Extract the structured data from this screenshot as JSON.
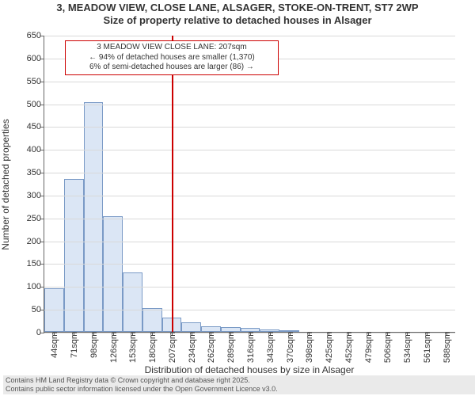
{
  "title_line1": "3, MEADOW VIEW, CLOSE LANE, ALSAGER, STOKE-ON-TRENT, ST7 2WP",
  "title_line2": "Size of property relative to detached houses in Alsager",
  "title_fontsize": 13,
  "ylabel": "Number of detached properties",
  "xlabel": "Distribution of detached houses by size in Alsager",
  "axis_label_fontsize": 12,
  "tick_fontsize": 11,
  "chart": {
    "type": "histogram",
    "ylim": [
      0,
      650
    ],
    "ytick_step": 50,
    "grid_color": "#d9d9d9",
    "axis_color": "#666666",
    "background_color": "#ffffff",
    "bar_fill": "#dbe6f5",
    "bar_border": "#7a9ac6",
    "bar_width_ratio": 1.0,
    "categories": [
      "44sqm",
      "71sqm",
      "98sqm",
      "126sqm",
      "153sqm",
      "180sqm",
      "207sqm",
      "234sqm",
      "262sqm",
      "289sqm",
      "316sqm",
      "343sqm",
      "370sqm",
      "398sqm",
      "425sqm",
      "452sqm",
      "479sqm",
      "506sqm",
      "534sqm",
      "561sqm",
      "588sqm"
    ],
    "values": [
      95,
      335,
      502,
      253,
      130,
      52,
      32,
      20,
      12,
      10,
      8,
      5,
      4,
      0,
      0,
      0,
      0,
      0,
      0,
      0,
      0
    ]
  },
  "marker": {
    "category_index": 6,
    "line_color": "#cc0000",
    "line_width": 2,
    "callout_border": "#cc0000",
    "line1": "3 MEADOW VIEW CLOSE LANE: 207sqm",
    "line2": "← 94% of detached houses are smaller (1,370)",
    "line3": "6% of semi-detached houses are larger (86) →",
    "callout_fontsize": 10
  },
  "footer": {
    "line1": "Contains HM Land Registry data © Crown copyright and database right 2025.",
    "line2": "Contains public sector information licensed under the Open Government Licence v3.0.",
    "fontsize": 9,
    "background": "#eaeaea"
  }
}
